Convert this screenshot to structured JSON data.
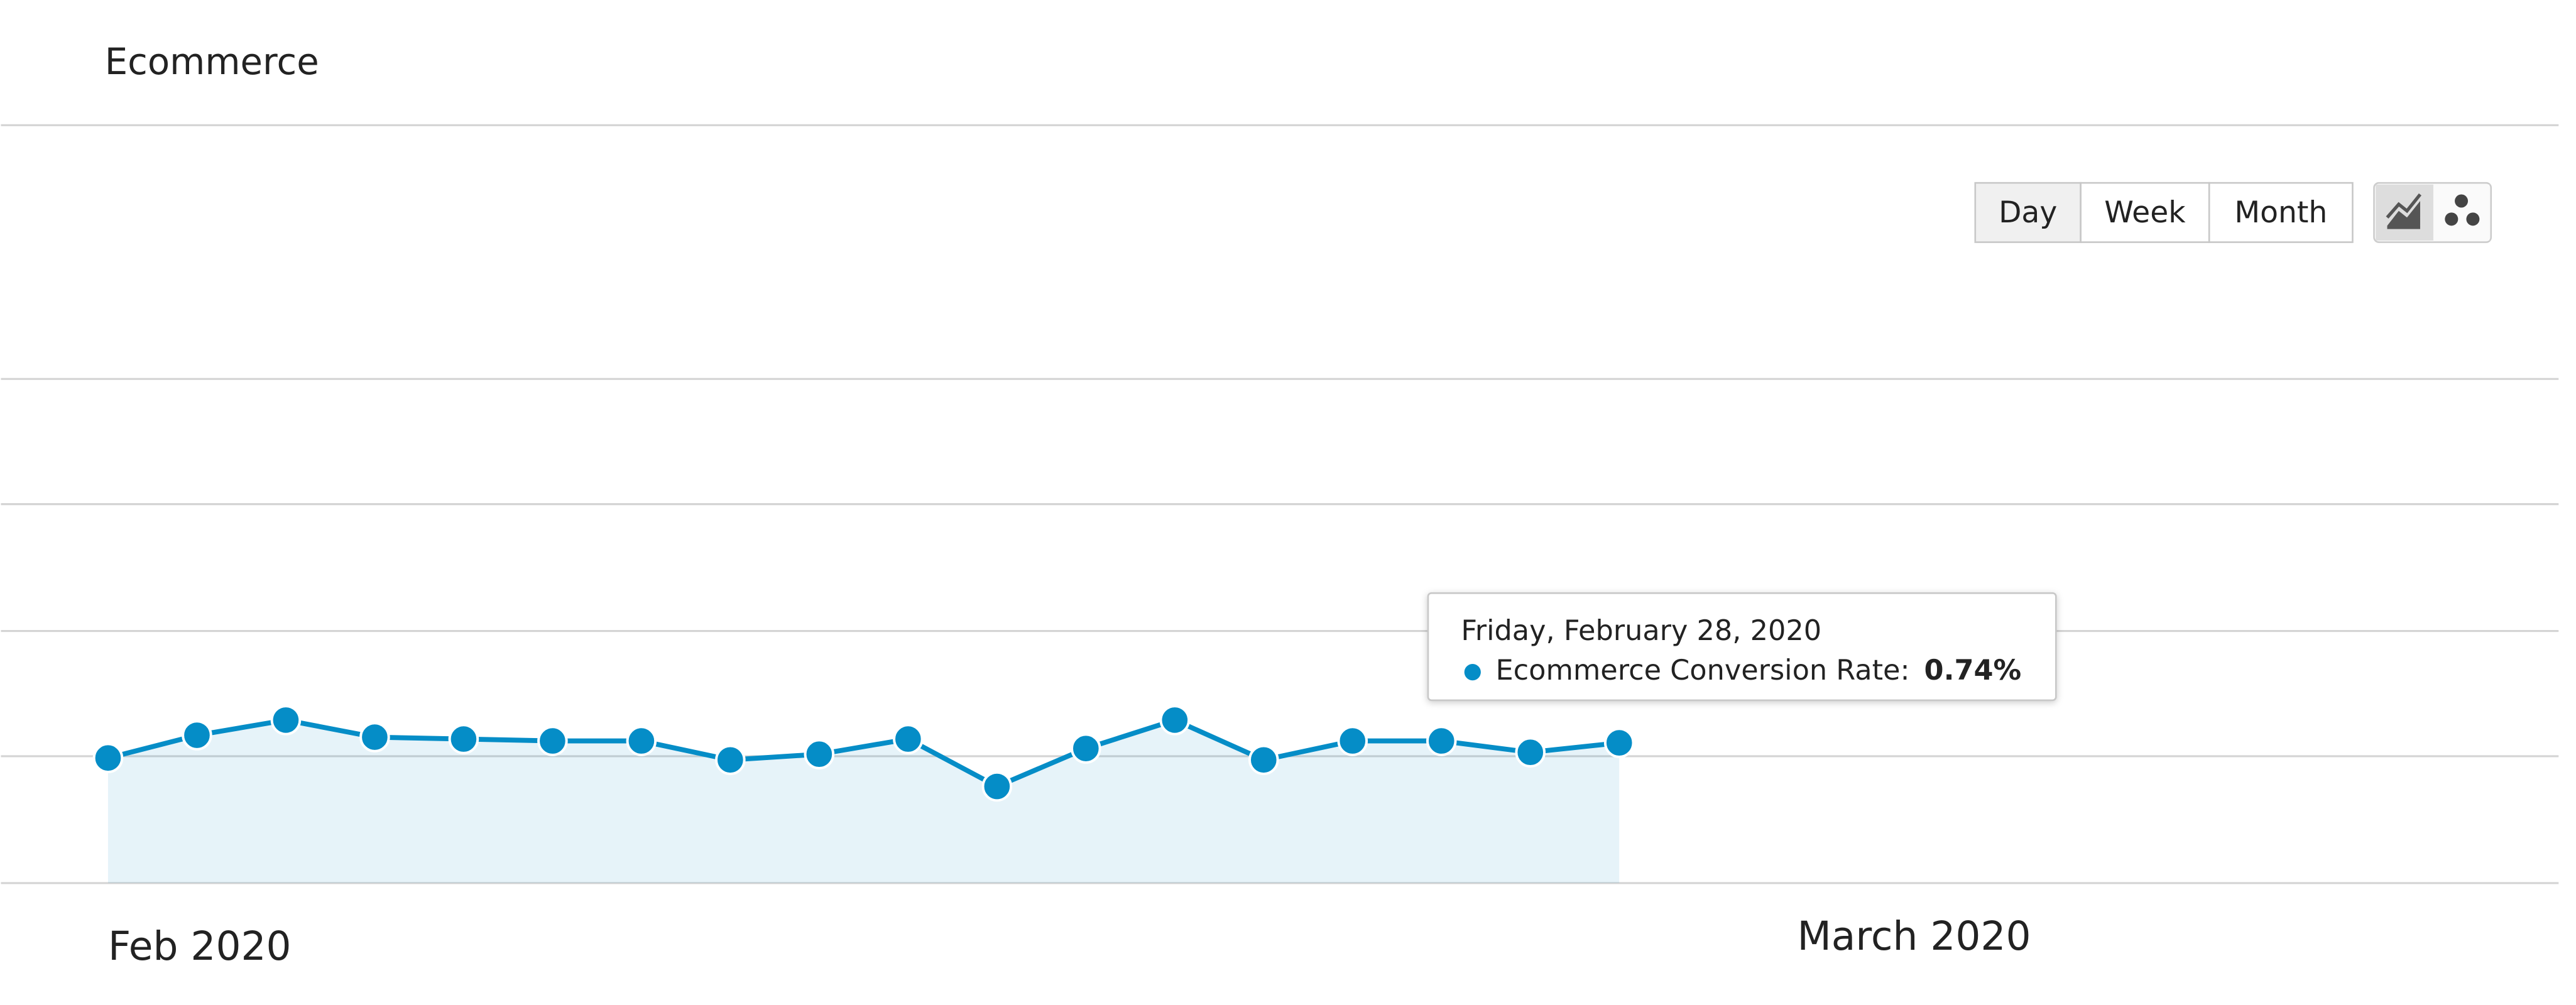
{
  "header": {
    "title": "Ecommerce"
  },
  "controls": {
    "buttons": [
      "Day",
      "Week",
      "Month"
    ],
    "selected": "Day"
  },
  "chart": {
    "type": "line",
    "x_labels": [
      "Feb 2020",
      "March 2020"
    ],
    "categories": [
      null,
      null,
      null,
      null,
      null,
      null,
      null,
      null,
      null,
      null,
      null,
      null,
      null,
      null,
      null,
      null,
      null,
      null
    ],
    "series": [
      {
        "name": "Ecommerce Conversion Rate:",
        "color": "#058dc7",
        "values": [
          0.66,
          0.78,
          0.86,
          0.77,
          0.76,
          0.75,
          0.75,
          0.65,
          0.68,
          0.76,
          0.51,
          0.71,
          0.86,
          0.65,
          0.75,
          0.75,
          0.69,
          0.74
        ],
        "value_labels": [
          null,
          null,
          null,
          null,
          null,
          null,
          null,
          null,
          null,
          null,
          null,
          null,
          null,
          null,
          null,
          null,
          null,
          "0.74%"
        ]
      }
    ],
    "ylim": [
      0,
      2.66
    ],
    "tooltip": {
      "date": "Friday, February 28, 2020"
    }
  }
}
